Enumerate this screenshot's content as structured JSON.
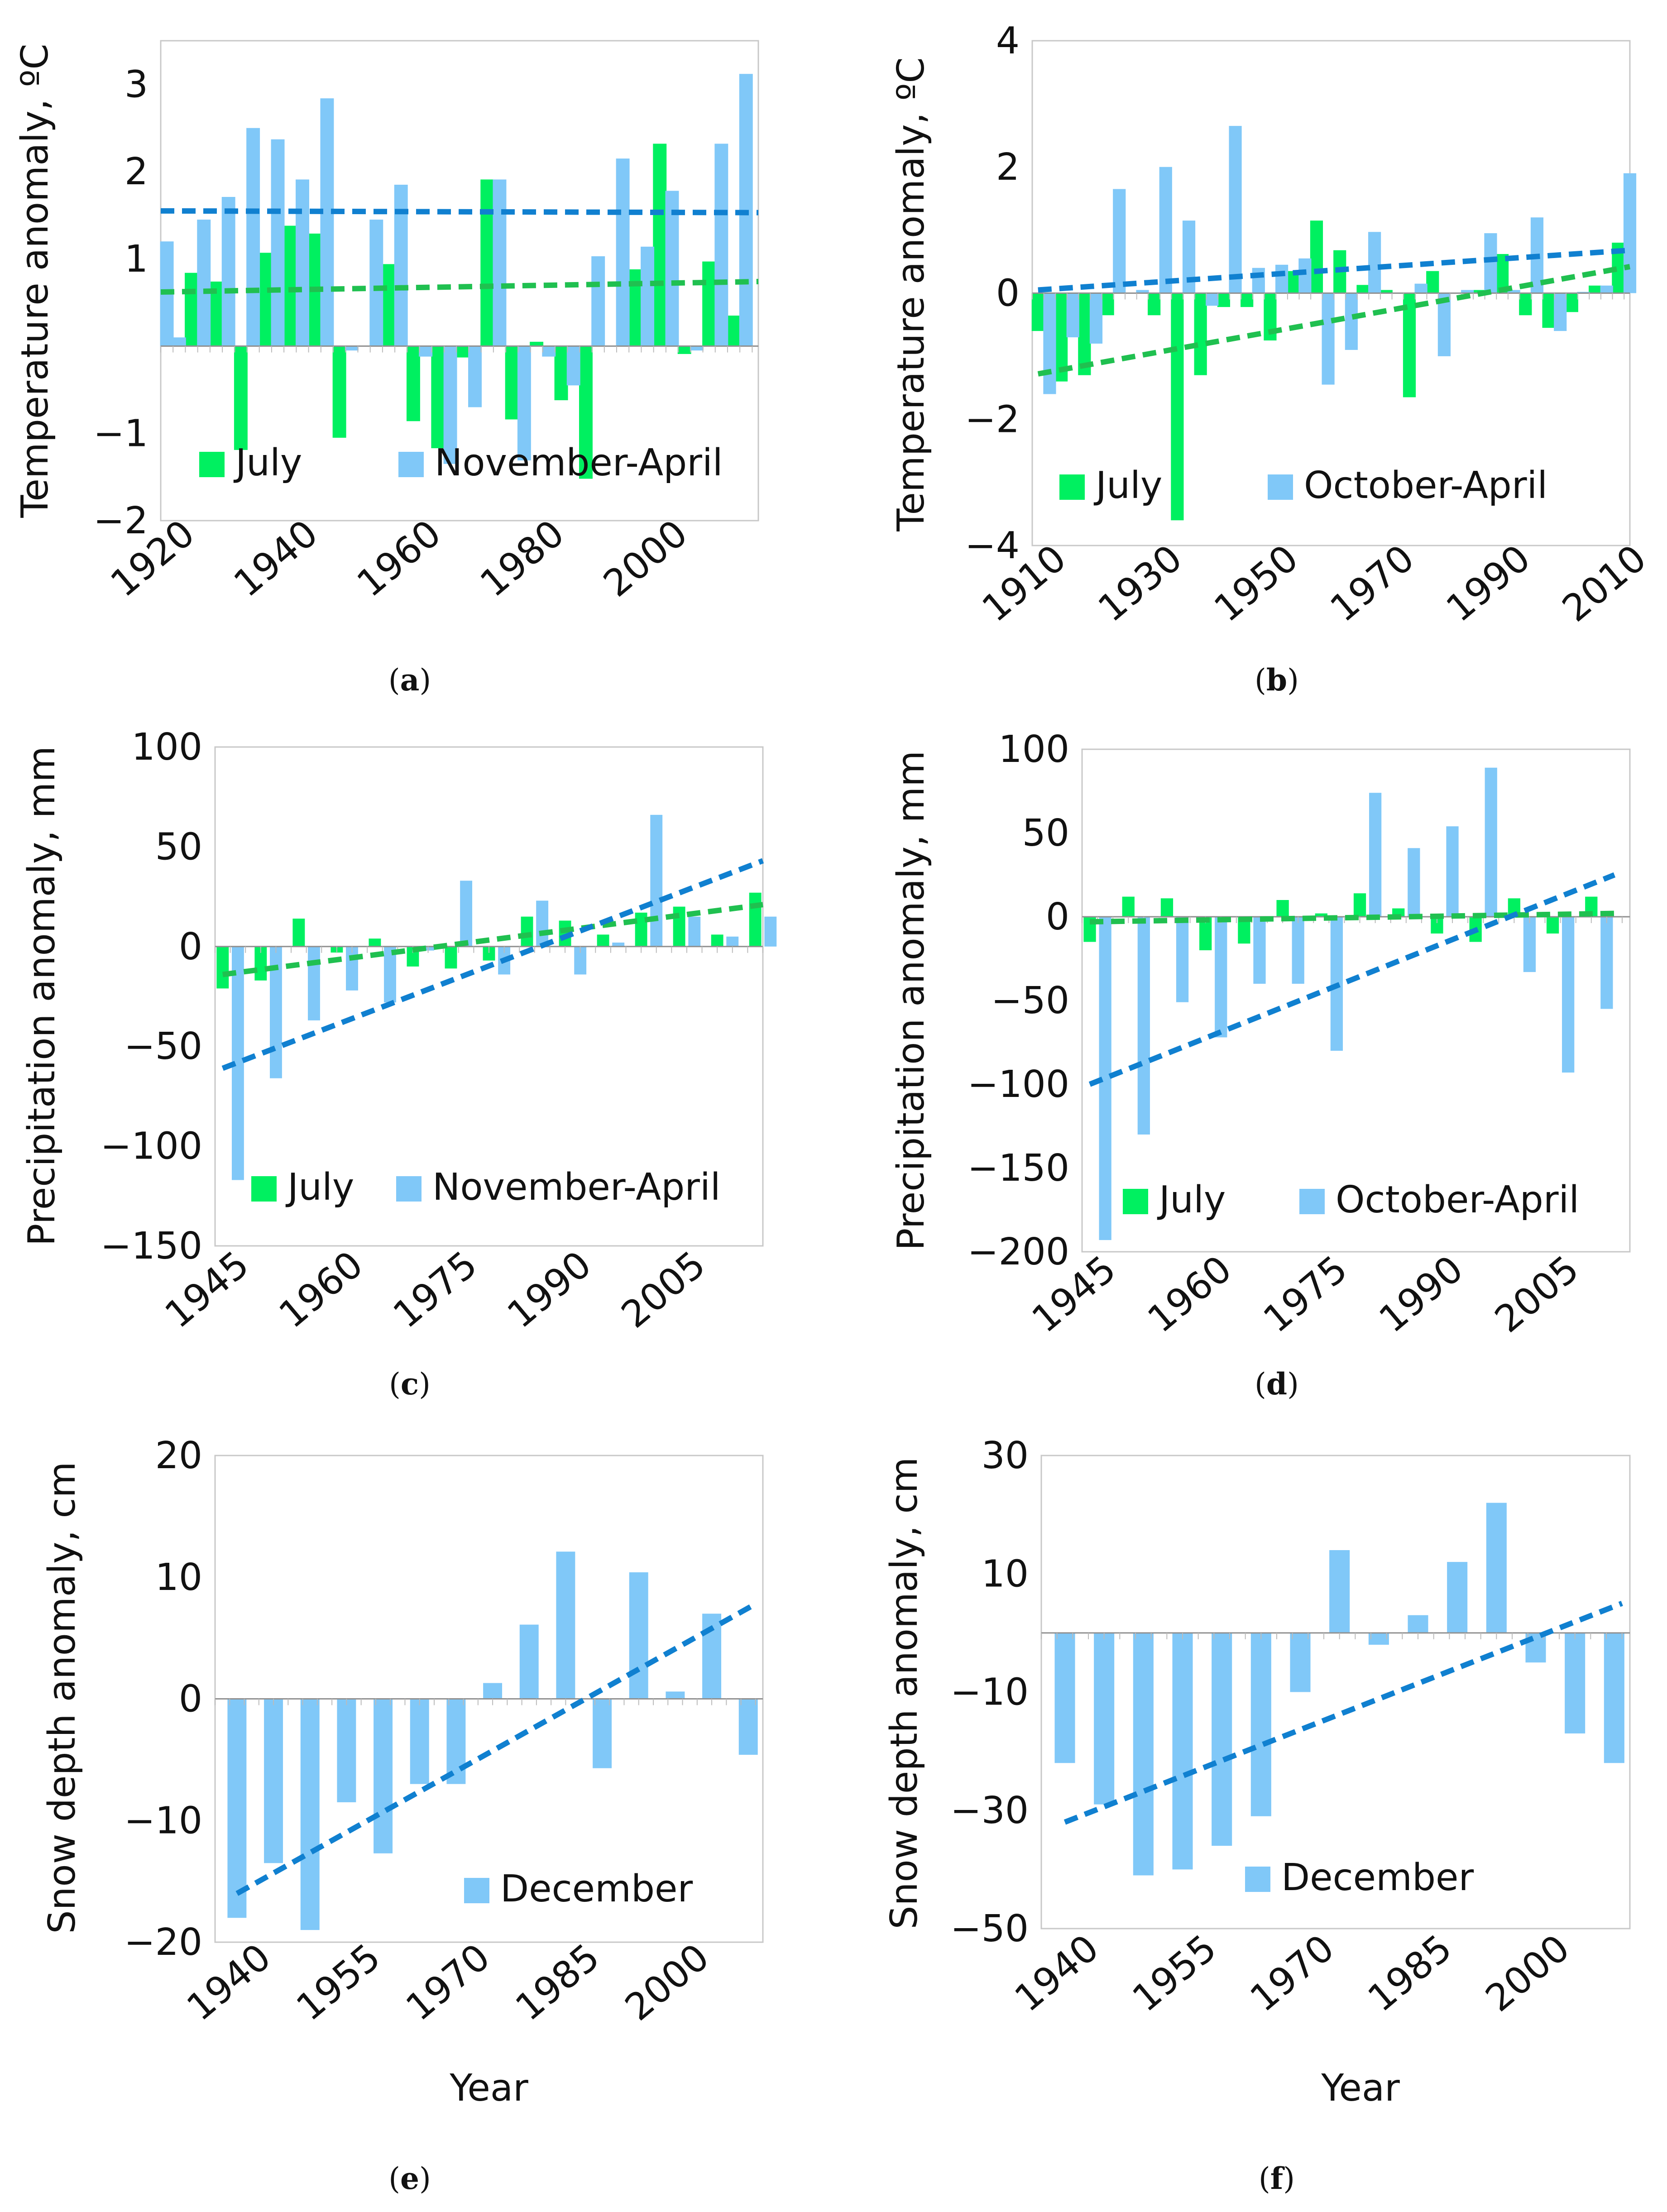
{
  "colors": {
    "july": "#00f060",
    "winter": "#80c8f8",
    "trend_july": "#20c050",
    "trend_winter": "#1080d0",
    "frame": "#c8c8c8",
    "axis": "#909090",
    "grid": "#bbbbbb"
  },
  "chart_data": [
    {
      "id": "a",
      "type": "bar",
      "caption": "a",
      "ylabel": "Temperature anomaly, ºC",
      "ylim": [
        -2,
        3.5
      ],
      "yticks": [
        -2,
        -1,
        1,
        2,
        3
      ],
      "baseline": 0,
      "xlim": [
        1920,
        2017
      ],
      "xticks": [
        1920,
        1940,
        1960,
        1980,
        2000
      ],
      "barwidth": 2.2,
      "series": [
        {
          "name": "July",
          "role": "july",
          "x": [
            1925,
            1929,
            1933,
            1937,
            1941,
            1945,
            1949,
            1957,
            1961,
            1965,
            1969,
            1973,
            1977,
            1981,
            1985,
            1989,
            1997,
            2001,
            2005,
            2009,
            2013
          ],
          "values": [
            0.84,
            0.74,
            -1.19,
            1.07,
            1.38,
            1.29,
            -1.05,
            0.94,
            -0.86,
            -1.17,
            -0.13,
            1.91,
            -0.84,
            0.05,
            -0.62,
            -1.52,
            0.88,
            2.32,
            -0.09,
            0.97,
            0.35
          ]
        },
        {
          "name": "November-April",
          "role": "winter",
          "x": [
            1921,
            1923,
            1927,
            1931,
            1935,
            1939,
            1943,
            1947,
            1951,
            1955,
            1959,
            1963,
            1967,
            1971,
            1975,
            1979,
            1983,
            1987,
            1991,
            1995,
            1999,
            2003,
            2007,
            2011,
            2015
          ],
          "values": [
            1.2,
            0.1,
            1.45,
            1.71,
            2.5,
            2.37,
            1.91,
            2.84,
            -0.05,
            1.45,
            1.85,
            -0.12,
            -1.35,
            -0.7,
            1.91,
            -1.31,
            -0.12,
            -0.45,
            1.03,
            2.15,
            1.14,
            1.78,
            -0.05,
            2.32,
            3.12
          ]
        }
      ],
      "trends": [
        {
          "role": "july",
          "x": [
            1920,
            2017
          ],
          "y": [
            0.62,
            0.74
          ]
        },
        {
          "role": "winter",
          "x": [
            1920,
            2017
          ],
          "y": [
            1.55,
            1.53
          ]
        }
      ],
      "legend": {
        "entries": [
          "July",
          "November-April"
        ],
        "position": "bottom"
      }
    },
    {
      "id": "b",
      "type": "bar",
      "caption": "b",
      "ylabel": "Temperature anomaly, ºC",
      "ylim": [
        -4,
        4
      ],
      "yticks": [
        -4,
        -2,
        0,
        2,
        4
      ],
      "baseline": 0,
      "xlim": [
        1910,
        2013
      ],
      "xticks": [
        1910,
        1930,
        1950,
        1970,
        1990,
        2010
      ],
      "barwidth": 2.2,
      "series": [
        {
          "name": "July",
          "role": "july",
          "x": [
            1911,
            1915,
            1919,
            1923,
            1931,
            1935,
            1939,
            1943,
            1947,
            1951,
            1955,
            1959,
            1963,
            1967,
            1971,
            1975,
            1979,
            1987,
            1991,
            1995,
            1999,
            2003,
            2007,
            2011
          ],
          "values": [
            -0.6,
            -1.4,
            -1.3,
            -0.35,
            -0.35,
            -3.6,
            -1.3,
            -0.22,
            -0.22,
            -0.75,
            0.35,
            1.15,
            0.68,
            0.13,
            0.05,
            -1.65,
            0.35,
            0.05,
            0.62,
            -0.35,
            -0.55,
            -0.3,
            0.12,
            0.8
          ]
        },
        {
          "name": "October-April",
          "role": "winter",
          "x": [
            1913,
            1917,
            1921,
            1925,
            1929,
            1933,
            1937,
            1941,
            1945,
            1949,
            1953,
            1957,
            1961,
            1965,
            1969,
            1977,
            1981,
            1985,
            1989,
            1993,
            1997,
            2001,
            2005,
            2009,
            2013
          ],
          "values": [
            -1.6,
            -0.7,
            -0.8,
            1.65,
            0.05,
            2.0,
            1.15,
            -0.2,
            2.65,
            0.4,
            0.45,
            0.55,
            -1.45,
            -0.9,
            0.97,
            0.15,
            -1.0,
            0.05,
            0.95,
            0.05,
            1.2,
            -0.6,
            0.02,
            0.12,
            1.9
          ]
        }
      ],
      "trends": [
        {
          "role": "july",
          "x": [
            1911,
            2013
          ],
          "y": [
            -1.28,
            0.42
          ]
        },
        {
          "role": "winter",
          "x": [
            1911,
            2013
          ],
          "y": [
            0.05,
            0.68
          ]
        }
      ],
      "legend": {
        "entries": [
          "July",
          "October-April"
        ],
        "position": "bottom"
      }
    },
    {
      "id": "c",
      "type": "bar",
      "caption": "c",
      "ylabel": "Precipitation anomaly, mm",
      "ylim": [
        -150,
        100
      ],
      "yticks": [
        -150,
        -100,
        -50,
        0,
        50,
        100
      ],
      "baseline": 0,
      "xlim": [
        1945,
        2017
      ],
      "xticks": [
        1945,
        1960,
        1975,
        1990,
        2005
      ],
      "barwidth": 1.6,
      "series": [
        {
          "name": "July",
          "role": "july",
          "x": [
            1946,
            1951,
            1956,
            1961,
            1966,
            1971,
            1976,
            1981,
            1986,
            1991,
            1996,
            2001,
            2006,
            2011,
            2016
          ],
          "values": [
            -21,
            -17,
            14,
            -3,
            4,
            -10,
            -11,
            -7,
            15,
            13,
            6,
            17,
            20,
            6,
            27
          ]
        },
        {
          "name": "November-April",
          "role": "winter",
          "x": [
            1948,
            1953,
            1958,
            1963,
            1968,
            1973,
            1978,
            1983,
            1988,
            1993,
            1998,
            2003,
            2008,
            2013,
            2018
          ],
          "values": [
            -117,
            -66,
            -37,
            -22,
            -28,
            -2,
            33,
            -14,
            23,
            -14,
            2,
            66,
            15,
            5,
            15
          ]
        }
      ],
      "trends": [
        {
          "role": "july",
          "x": [
            1946,
            2017
          ],
          "y": [
            -14,
            21
          ]
        },
        {
          "role": "winter",
          "x": [
            1946,
            2017
          ],
          "y": [
            -61,
            43
          ]
        }
      ],
      "legend": {
        "entries": [
          "July",
          "November-April"
        ],
        "position": "bottom"
      }
    },
    {
      "id": "d",
      "type": "bar",
      "caption": "d",
      "ylabel": "Precipitation anomaly, mm",
      "ylim": [
        -200,
        100
      ],
      "yticks": [
        -200,
        -150,
        -100,
        -50,
        0,
        50,
        100
      ],
      "baseline": 0,
      "xlim": [
        1945,
        2016
      ],
      "xticks": [
        1945,
        1960,
        1975,
        1990,
        2005
      ],
      "barwidth": 1.6,
      "series": [
        {
          "name": "July",
          "role": "july",
          "x": [
            1946,
            1951,
            1956,
            1961,
            1966,
            1971,
            1976,
            1981,
            1986,
            1991,
            1996,
            2001,
            2006,
            2011
          ],
          "values": [
            -15,
            12,
            11,
            -20,
            -16,
            10,
            2,
            14,
            5,
            -10,
            -15,
            11,
            -10,
            12
          ]
        },
        {
          "name": "October-April",
          "role": "winter",
          "x": [
            1948,
            1953,
            1958,
            1963,
            1968,
            1973,
            1978,
            1983,
            1988,
            1993,
            1998,
            2003,
            2008,
            2013
          ],
          "values": [
            -193,
            -130,
            -51,
            -72,
            -40,
            -40,
            -80,
            74,
            41,
            54,
            89,
            -33,
            -93,
            -55
          ]
        }
      ],
      "trends": [
        {
          "role": "july",
          "x": [
            1946,
            2014
          ],
          "y": [
            -3,
            2
          ]
        },
        {
          "role": "winter",
          "x": [
            1946,
            2014
          ],
          "y": [
            -100,
            25
          ]
        }
      ],
      "legend": {
        "entries": [
          "July",
          "October-April"
        ],
        "position": "bottom"
      }
    },
    {
      "id": "e",
      "type": "bar",
      "caption": "e",
      "ylabel": "Snow depth anomaly, cm",
      "xlabel": "Year",
      "ylim": [
        -20,
        20
      ],
      "yticks": [
        -20,
        -10,
        0,
        10,
        20
      ],
      "baseline": 0,
      "xlim": [
        1937,
        2012
      ],
      "xticks": [
        1940,
        1955,
        1970,
        1985,
        2000
      ],
      "barwidth": 2.6,
      "series": [
        {
          "name": "December",
          "role": "winter",
          "x": [
            1940,
            1945,
            1950,
            1955,
            1960,
            1965,
            1970,
            1975,
            1980,
            1985,
            1990,
            1995,
            2000,
            2005,
            2010
          ],
          "values": [
            -18,
            -13.5,
            -19,
            -8.5,
            -12.7,
            -7,
            -7,
            1.3,
            6.1,
            12.1,
            -5.7,
            10.4,
            0.6,
            7,
            -4.6
          ]
        }
      ],
      "trends": [
        {
          "role": "winter",
          "x": [
            1940,
            2011
          ],
          "y": [
            -16,
            7.8
          ]
        }
      ],
      "legend": {
        "entries": [
          "December"
        ],
        "position": "bottom-right"
      }
    },
    {
      "id": "f",
      "type": "bar",
      "caption": "f",
      "ylabel": "Snow depth anomaly, cm",
      "xlabel": "Year",
      "ylim": [
        -50,
        30
      ],
      "yticks": [
        -50,
        -30,
        -10,
        10,
        30
      ],
      "baseline": 0,
      "xlim": [
        1937,
        2012
      ],
      "xticks": [
        1940,
        1955,
        1970,
        1985,
        2000
      ],
      "barwidth": 2.6,
      "series": [
        {
          "name": "December",
          "role": "winter",
          "x": [
            1940,
            1945,
            1950,
            1955,
            1960,
            1965,
            1970,
            1975,
            1980,
            1985,
            1990,
            1995,
            2000,
            2005,
            2010
          ],
          "values": [
            -22,
            -29,
            -41,
            -40,
            -36,
            -31,
            -10,
            14,
            -2,
            3,
            12,
            22,
            -5,
            -17,
            -22
          ]
        }
      ],
      "trends": [
        {
          "role": "winter",
          "x": [
            1940,
            2011
          ],
          "y": [
            -32,
            5
          ]
        }
      ],
      "legend": {
        "entries": [
          "December"
        ],
        "position": "bottom"
      }
    }
  ]
}
